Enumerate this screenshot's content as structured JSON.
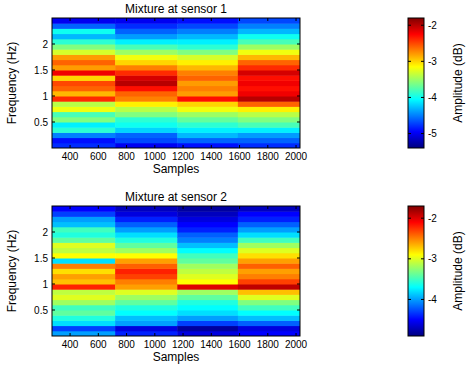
{
  "chart_data": [
    {
      "type": "heatmap",
      "title": "Mixture at sensor 1",
      "x_label": "Samples",
      "y_label": "Frequency (Hz)",
      "x": [
        272,
        719,
        1159,
        1588,
        2028
      ],
      "y": [
        0,
        0.1,
        0.2,
        0.3,
        0.4,
        0.5,
        0.6,
        0.7,
        0.8,
        0.9,
        1.0,
        1.1,
        1.2,
        1.3,
        1.4,
        1.5,
        1.6,
        1.7,
        1.8,
        1.9,
        2.0,
        2.1,
        2.2,
        2.3,
        2.4,
        2.5
      ],
      "xlim": [
        272,
        2028
      ],
      "ylim": [
        0,
        2.5
      ],
      "xticks": [
        400,
        600,
        800,
        1000,
        1200,
        1400,
        1600,
        1800,
        2000
      ],
      "yticks": [
        0.5,
        1,
        1.5,
        2
      ],
      "values": [
        [
          -4.8,
          -4.9,
          -4.5,
          -3.9,
          -4.1,
          -3.6,
          -3.8,
          -3.2,
          -3.4,
          -2.4,
          -2.9,
          -2.6,
          -2.5,
          -3.0,
          -2.2,
          -2.8,
          -2.6,
          -2.8,
          -3.3,
          -3.6,
          -3.9,
          -4.3,
          -4.0,
          -4.6,
          -5.0
        ],
        [
          -5.0,
          -4.7,
          -4.6,
          -4.2,
          -4.0,
          -3.9,
          -3.6,
          -3.4,
          -3.1,
          -2.7,
          -2.6,
          -2.3,
          -2.0,
          -2.1,
          -2.4,
          -2.7,
          -3.0,
          -3.2,
          -3.5,
          -3.8,
          -4.1,
          -4.4,
          -4.6,
          -4.8,
          -5.0
        ],
        [
          -4.9,
          -4.6,
          -4.3,
          -4.1,
          -3.9,
          -3.7,
          -3.5,
          -3.2,
          -3.0,
          -2.3,
          -2.8,
          -2.7,
          -2.8,
          -2.6,
          -2.7,
          -2.9,
          -3.1,
          -3.3,
          -3.6,
          -3.9,
          -4.1,
          -4.3,
          -4.5,
          -4.7,
          -4.9
        ],
        [
          -4.8,
          -4.6,
          -4.4,
          -4.1,
          -3.8,
          -3.6,
          -3.4,
          -3.1,
          -2.6,
          -2.0,
          -2.2,
          -2.3,
          -2.2,
          -2.3,
          -2.1,
          -2.4,
          -2.6,
          -2.9,
          -3.2,
          -3.5,
          -3.8,
          -4.0,
          -4.3,
          -4.5,
          -4.7
        ]
      ],
      "colorbar_label": "Amplitude (dB)",
      "clim": [
        -5.4,
        -1.8
      ],
      "cticks": [
        -5,
        -4,
        -3,
        -2
      ]
    },
    {
      "type": "heatmap",
      "title": "Mixture at sensor 2",
      "x_label": "Samples",
      "y_label": "Frequency (Hz)",
      "x": [
        272,
        719,
        1159,
        1588,
        2028
      ],
      "y": [
        0,
        0.1,
        0.2,
        0.3,
        0.4,
        0.5,
        0.6,
        0.7,
        0.8,
        0.9,
        1.0,
        1.1,
        1.2,
        1.3,
        1.4,
        1.5,
        1.6,
        1.7,
        1.8,
        1.9,
        2.0,
        2.1,
        2.2,
        2.3,
        2.4,
        2.5
      ],
      "xlim": [
        272,
        2028
      ],
      "ylim": [
        0,
        2.5
      ],
      "xticks": [
        400,
        600,
        800,
        1000,
        1200,
        1400,
        1600,
        1800,
        2000
      ],
      "yticks": [
        0.5,
        1,
        1.5,
        2
      ],
      "values": [
        [
          -4.0,
          -4.3,
          -3.8,
          -3.6,
          -3.4,
          -3.5,
          -3.2,
          -3.0,
          -3.1,
          -2.2,
          -2.7,
          -2.6,
          -2.8,
          -2.5,
          -3.8,
          -2.9,
          -3.1,
          -3.0,
          -3.4,
          -3.6,
          -3.5,
          -3.9,
          -4.0,
          -4.3,
          -4.5
        ],
        [
          -4.4,
          -4.6,
          -4.0,
          -3.9,
          -3.7,
          -3.6,
          -3.4,
          -3.2,
          -3.0,
          -2.6,
          -2.5,
          -2.3,
          -2.2,
          -2.4,
          -2.6,
          -2.9,
          -3.2,
          -3.4,
          -3.6,
          -3.8,
          -4.0,
          -4.2,
          -4.4,
          -4.6,
          -4.7
        ],
        [
          -4.6,
          -4.8,
          -4.3,
          -4.0,
          -3.8,
          -3.7,
          -3.6,
          -3.4,
          -3.2,
          -2.0,
          -2.9,
          -3.0,
          -3.1,
          -3.2,
          -3.4,
          -3.5,
          -3.7,
          -3.9,
          -4.1,
          -4.2,
          -4.4,
          -4.5,
          -4.6,
          -4.7,
          -4.8
        ],
        [
          -4.5,
          -4.6,
          -4.2,
          -3.9,
          -3.7,
          -3.5,
          -3.3,
          -3.0,
          -2.7,
          -1.9,
          -2.3,
          -2.5,
          -2.6,
          -2.4,
          -2.6,
          -2.8,
          -3.0,
          -3.2,
          -3.5,
          -3.8,
          -4.0,
          -4.2,
          -4.4,
          -4.5,
          -4.7
        ]
      ],
      "colorbar_label": "Amplitude (dB)",
      "clim": [
        -4.9,
        -1.7
      ],
      "cticks": [
        -4,
        -3,
        -2
      ]
    }
  ]
}
